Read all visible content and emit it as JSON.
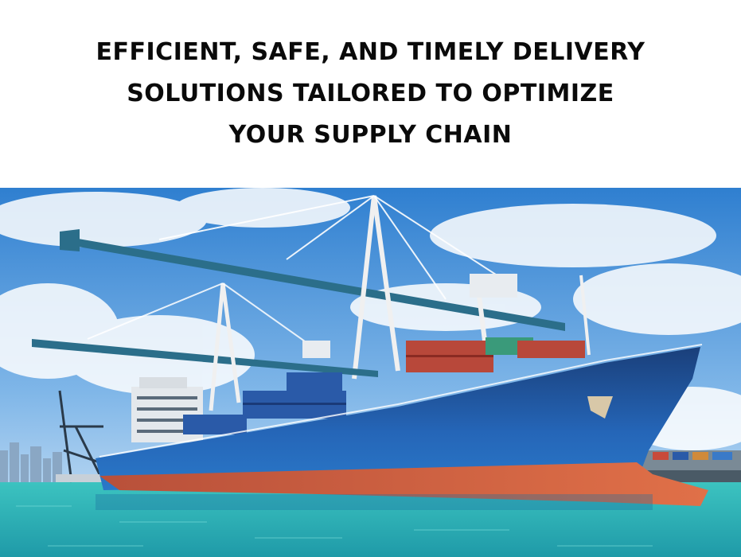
{
  "headline": {
    "line1": "EFFICIENT, SAFE, AND TIMELY DELIVERY",
    "line2": "SOLUTIONS TAILORED TO OPTIMIZE",
    "line3": "YOUR SUPPLY CHAIN"
  },
  "photo": {
    "subject": "container-ship-at-port",
    "colors": {
      "sky": "#3f8fd8",
      "sky_light": "#bfdcf5",
      "water": "#2fb8b8",
      "hull_blue": "#1f5ea8",
      "hull_red": "#c8563a",
      "crane": "#2b6e8a",
      "container_red": "#b8483a",
      "container_blue": "#2a5aa8"
    }
  }
}
